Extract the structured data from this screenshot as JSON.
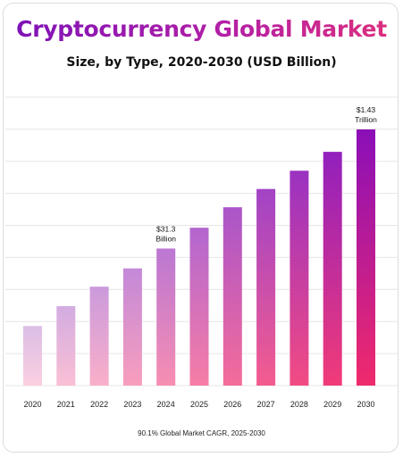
{
  "header": {
    "title": "Cryptocurrency Global Market",
    "subtitle": "Size, by Type, 2020-2030 (USD Billion)"
  },
  "footnote": "90.1% Global Market CAGR,  2025-2030",
  "colors": {
    "bar_top_light": "#dbbde5",
    "bar_top_dark": "#8a0fb8",
    "bar_bottom_light": "#fbd0e0",
    "bar_bottom_dark": "#f02a6c",
    "title_start": "#7a12b8",
    "title_end": "#e0307c",
    "grid": "#e6e6e6"
  },
  "chart_data": {
    "type": "bar",
    "categories": [
      "2020",
      "2021",
      "2022",
      "2023",
      "2024",
      "2025",
      "2026",
      "2027",
      "2028",
      "2029",
      "2030"
    ],
    "values": [
      18.6,
      24.8,
      30.9,
      36.6,
      42.8,
      49.3,
      55.7,
      61.4,
      67.1,
      73.0,
      80.0
    ],
    "value_scale": "relative (estimated from bar heights; no y-axis values printed)",
    "ylim": [
      0,
      80
    ],
    "grid": true,
    "title": "Cryptocurrency Global Market",
    "subtitle": "Size, by Type, 2020-2030 (USD Billion)",
    "annotations": [
      {
        "category": "2024",
        "lines": [
          "$31.3",
          "Billion"
        ]
      },
      {
        "category": "2030",
        "lines": [
          "$1.43",
          "Trillion"
        ]
      }
    ]
  }
}
